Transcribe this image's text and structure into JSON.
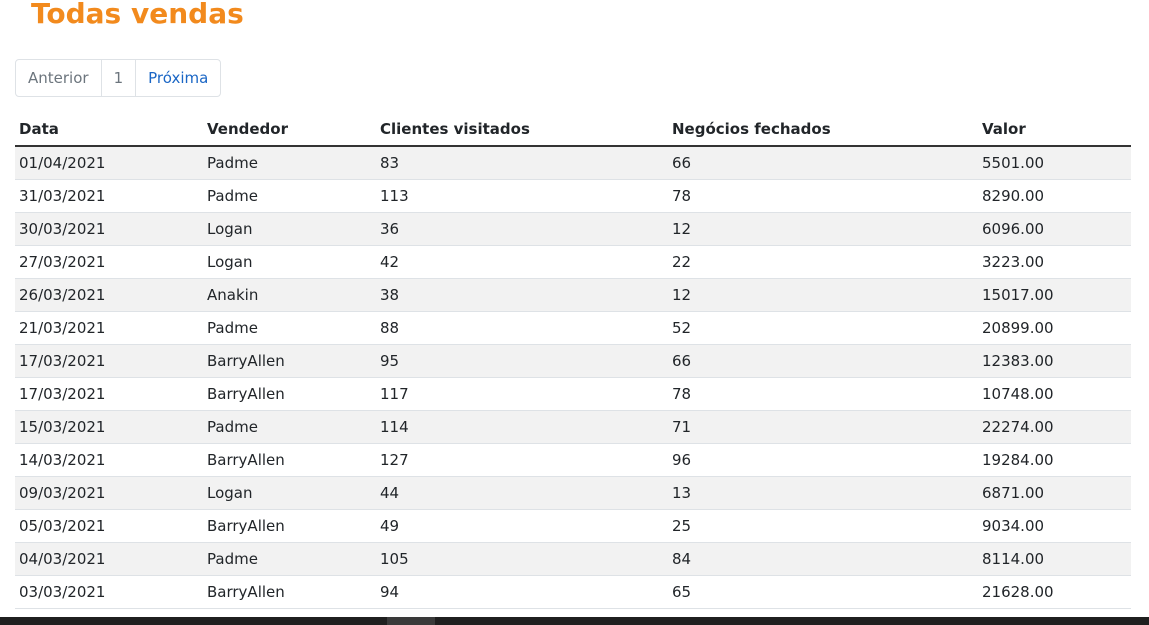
{
  "page": {
    "title": "Todas vendas"
  },
  "pagination": {
    "previous": "Anterior",
    "current": "1",
    "next": "Próxima"
  },
  "table": {
    "headers": [
      "Data",
      "Vendedor",
      "Clientes visitados",
      "Negócios fechados",
      "Valor"
    ],
    "rows": [
      [
        "01/04/2021",
        "Padme",
        "83",
        "66",
        "5501.00"
      ],
      [
        "31/03/2021",
        "Padme",
        "113",
        "78",
        "8290.00"
      ],
      [
        "30/03/2021",
        "Logan",
        "36",
        "12",
        "6096.00"
      ],
      [
        "27/03/2021",
        "Logan",
        "42",
        "22",
        "3223.00"
      ],
      [
        "26/03/2021",
        "Anakin",
        "38",
        "12",
        "15017.00"
      ],
      [
        "21/03/2021",
        "Padme",
        "88",
        "52",
        "20899.00"
      ],
      [
        "17/03/2021",
        "BarryAllen",
        "95",
        "66",
        "12383.00"
      ],
      [
        "17/03/2021",
        "BarryAllen",
        "117",
        "78",
        "10748.00"
      ],
      [
        "15/03/2021",
        "Padme",
        "114",
        "71",
        "22274.00"
      ],
      [
        "14/03/2021",
        "BarryAllen",
        "127",
        "96",
        "19284.00"
      ],
      [
        "09/03/2021",
        "Logan",
        "44",
        "13",
        "6871.00"
      ],
      [
        "05/03/2021",
        "BarryAllen",
        "49",
        "25",
        "9034.00"
      ],
      [
        "04/03/2021",
        "Padme",
        "105",
        "84",
        "8114.00"
      ],
      [
        "03/03/2021",
        "BarryAllen",
        "94",
        "65",
        "21628.00"
      ]
    ]
  },
  "colors": {
    "title": "#f28a1d",
    "link": "#1a66c5",
    "stripe": "#f2f2f2"
  }
}
